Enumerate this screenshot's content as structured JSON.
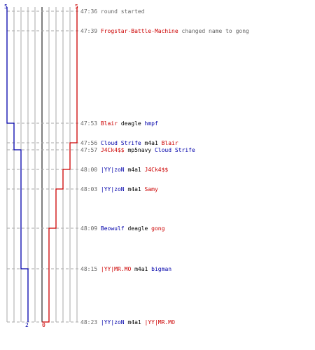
{
  "colors": {
    "blue": "#0000aa",
    "red": "#cc0000",
    "grid": "#aaaaaa",
    "center": "#555555",
    "dash": "#aaaaaa",
    "text": "#666666"
  },
  "scores": {
    "blue_top": "5",
    "red_top": "5",
    "blue_bottom": "2",
    "red_bottom": "0"
  },
  "events": [
    {
      "time": "47:36",
      "parts": [
        {
          "t": "round started",
          "c": "gray"
        }
      ]
    },
    {
      "time": "47:39",
      "parts": [
        {
          "t": "Frogstar-Battle-Machine",
          "c": "red"
        },
        {
          "t": " changed name to gong",
          "c": "gray"
        }
      ]
    },
    {
      "time": "47:53",
      "parts": [
        {
          "t": "Blair",
          "c": "red"
        },
        {
          "t": " deagle ",
          "c": "black"
        },
        {
          "t": "hmpf",
          "c": "blue"
        }
      ]
    },
    {
      "time": "47:56",
      "parts": [
        {
          "t": "Cloud Strife",
          "c": "blue"
        },
        {
          "t": " m4a1 ",
          "c": "black"
        },
        {
          "t": "Blair",
          "c": "red"
        }
      ]
    },
    {
      "time": "47:57",
      "parts": [
        {
          "t": "J4Ck4$$",
          "c": "red"
        },
        {
          "t": " mp5navy ",
          "c": "black"
        },
        {
          "t": "Cloud Strife",
          "c": "blue"
        }
      ]
    },
    {
      "time": "48:00",
      "parts": [
        {
          "t": "|YY|zoN",
          "c": "blue"
        },
        {
          "t": " m4a1 ",
          "c": "black"
        },
        {
          "t": "J4Ck4$$",
          "c": "red"
        }
      ]
    },
    {
      "time": "48:03",
      "parts": [
        {
          "t": "|YY|zoN",
          "c": "blue"
        },
        {
          "t": " m4a1 ",
          "c": "black"
        },
        {
          "t": "Samy",
          "c": "red"
        }
      ]
    },
    {
      "time": "48:09",
      "parts": [
        {
          "t": "Beowulf",
          "c": "blue"
        },
        {
          "t": " deagle ",
          "c": "black"
        },
        {
          "t": "gong",
          "c": "red"
        }
      ]
    },
    {
      "time": "48:15",
      "parts": [
        {
          "t": "|YY|MR.MO",
          "c": "red"
        },
        {
          "t": " m4a1 ",
          "c": "black"
        },
        {
          "t": "bigman",
          "c": "blue"
        }
      ]
    },
    {
      "time": "48:23",
      "parts": [
        {
          "t": "|YY|zoN",
          "c": "blue"
        },
        {
          "t": " m4a1 ",
          "c": "black"
        },
        {
          "t": "|YY|MR.MO",
          "c": "red"
        }
      ]
    }
  ],
  "chart_data": {
    "type": "line",
    "x": [
      "47:36",
      "47:39",
      "47:53",
      "47:56",
      "47:57",
      "48:00",
      "48:03",
      "48:09",
      "48:15",
      "48:23"
    ],
    "series": [
      {
        "values": [
          5,
          5,
          4,
          4,
          3,
          3,
          3,
          3,
          2,
          2
        ]
      },
      {
        "values": [
          5,
          5,
          5,
          4,
          4,
          3,
          2,
          1,
          1,
          0
        ]
      }
    ],
    "ylim": [
      0,
      5
    ]
  }
}
